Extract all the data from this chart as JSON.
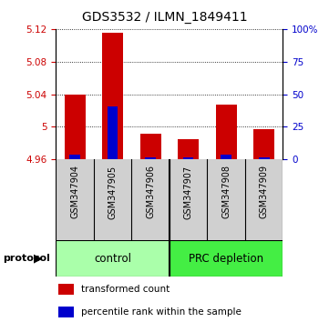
{
  "title": "GDS3532 / ILMN_1849411",
  "samples": [
    "GSM347904",
    "GSM347905",
    "GSM347906",
    "GSM347907",
    "GSM347908",
    "GSM347909"
  ],
  "red_values": [
    5.04,
    5.115,
    4.992,
    4.985,
    5.027,
    4.997
  ],
  "blue_values": [
    4.9655,
    5.025,
    4.963,
    4.962,
    4.9655,
    4.963
  ],
  "baseline": 4.96,
  "ylim": [
    4.96,
    5.12
  ],
  "yticks_left": [
    4.96,
    5.0,
    5.04,
    5.08,
    5.12
  ],
  "ytick_labels_left": [
    "4.96",
    "5",
    "5.04",
    "5.08",
    "5.12"
  ],
  "yticks_right_pct": [
    0,
    25,
    50,
    75,
    100
  ],
  "ytick_labels_right": [
    "0",
    "25",
    "50",
    "75",
    "100%"
  ],
  "groups": [
    {
      "label": "control",
      "start": 0,
      "end": 3,
      "color": "#aaffaa"
    },
    {
      "label": "PRC depletion",
      "start": 3,
      "end": 6,
      "color": "#44ee44"
    }
  ],
  "bar_width": 0.55,
  "blue_bar_width": 0.28,
  "red_color": "#cc0000",
  "blue_color": "#0000cc",
  "background_color": "#ffffff",
  "title_fontsize": 10,
  "axis_label_color_left": "#cc0000",
  "axis_label_color_right": "#0000cc",
  "protocol_label": "protocol",
  "legend_red": "transformed count",
  "legend_blue": "percentile rank within the sample",
  "sample_bg_color": "#d0d0d0",
  "separator_color": "#000000"
}
